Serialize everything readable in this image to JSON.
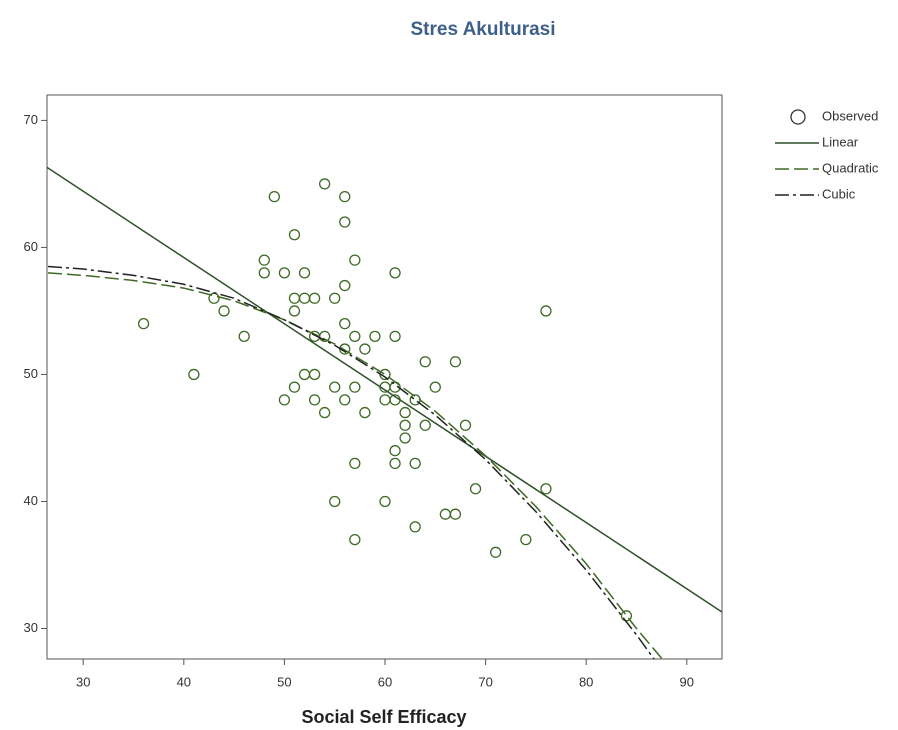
{
  "chart_data": {
    "type": "scatter",
    "title": "Stres Akulturasi",
    "x_label": "Social Self Efficacy",
    "xlim": [
      26.4,
      93.5
    ],
    "ylim": [
      27.6,
      72.0
    ],
    "xticks": [
      30,
      40,
      50,
      60,
      70,
      80,
      90
    ],
    "yticks": [
      30,
      40,
      50,
      60,
      70
    ],
    "series": [
      {
        "name": "Observed",
        "kind": "points",
        "color": "#3f6a25",
        "x": [
          36,
          41,
          43,
          44,
          46,
          49,
          48,
          48,
          50,
          52,
          51,
          51,
          52,
          53,
          51,
          53,
          54,
          52,
          53,
          50,
          51,
          53,
          54,
          54,
          56,
          56,
          57,
          56,
          55,
          56,
          57,
          56,
          58,
          59,
          61,
          61,
          55,
          57,
          56,
          58,
          60,
          60,
          60,
          61,
          61,
          62,
          62,
          62,
          63,
          64,
          64,
          65,
          67,
          68,
          61,
          61,
          63,
          57,
          66,
          67,
          69,
          55,
          60,
          63,
          57,
          71,
          74,
          76,
          76,
          84
        ],
        "values": [
          54,
          50,
          56,
          55,
          53,
          64,
          59,
          58,
          58,
          58,
          61,
          56,
          56,
          56,
          55,
          53,
          53,
          50,
          50,
          48,
          49,
          48,
          47,
          65,
          64,
          62,
          59,
          57,
          56,
          54,
          53,
          52,
          52,
          53,
          53,
          58,
          49,
          49,
          48,
          47,
          50,
          49,
          48,
          49,
          48,
          47,
          46,
          45,
          48,
          46,
          51,
          49,
          51,
          46,
          44,
          43,
          43,
          43,
          39,
          39,
          41,
          40,
          40,
          38,
          37,
          36,
          37,
          55,
          41,
          31
        ]
      },
      {
        "name": "Linear",
        "kind": "line",
        "dash": "solid",
        "color": "#2f4f2a",
        "x": [
          26.4,
          93.5
        ],
        "values": [
          66.3,
          31.3
        ]
      },
      {
        "name": "Quadratic",
        "kind": "line",
        "dash": "dashed",
        "color": "#3f6a25",
        "x": [
          26.5,
          30,
          35,
          40,
          45,
          50,
          55,
          60,
          65,
          70,
          75,
          80,
          85,
          88.2
        ],
        "values": [
          58.0,
          57.8,
          57.4,
          56.8,
          55.8,
          54.3,
          52.4,
          50.0,
          47.1,
          43.6,
          39.6,
          35.1,
          30.0,
          27.0
        ]
      },
      {
        "name": "Cubic",
        "kind": "line",
        "dash": "dashdot",
        "color": "#222222",
        "x": [
          26.5,
          30,
          35,
          40,
          45,
          50,
          55,
          60,
          65,
          70,
          75,
          80,
          85,
          88.2
        ],
        "values": [
          58.5,
          58.3,
          57.8,
          57.1,
          56.0,
          54.3,
          52.3,
          49.8,
          46.8,
          43.3,
          39.2,
          34.6,
          29.5,
          26.0
        ]
      }
    ]
  }
}
